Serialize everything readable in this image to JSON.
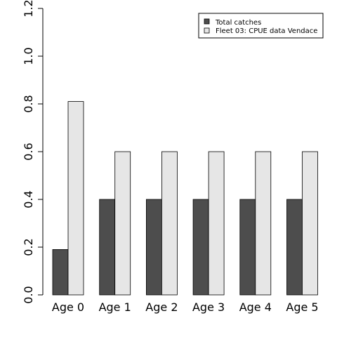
{
  "chart_data": {
    "type": "bar",
    "categories": [
      "Age 0",
      "Age 1",
      "Age 2",
      "Age 3",
      "Age 4",
      "Age 5"
    ],
    "series": [
      {
        "name": "Total catches",
        "values": [
          0.19,
          0.4,
          0.4,
          0.4,
          0.4,
          0.4
        ],
        "color": "#4d4d4d"
      },
      {
        "name": "Fleet 03:  CPUE data Vendace",
        "values": [
          0.81,
          0.6,
          0.6,
          0.6,
          0.6,
          0.6
        ],
        "color": "#e6e6e6"
      }
    ],
    "ylim": [
      0,
      1.2
    ],
    "yticks": [
      "0.0",
      "0.2",
      "0.4",
      "0.6",
      "0.8",
      "1.0",
      "1.2"
    ],
    "title": "",
    "xlabel": "",
    "ylabel": "",
    "legend_position": "top-right",
    "grid": false
  }
}
